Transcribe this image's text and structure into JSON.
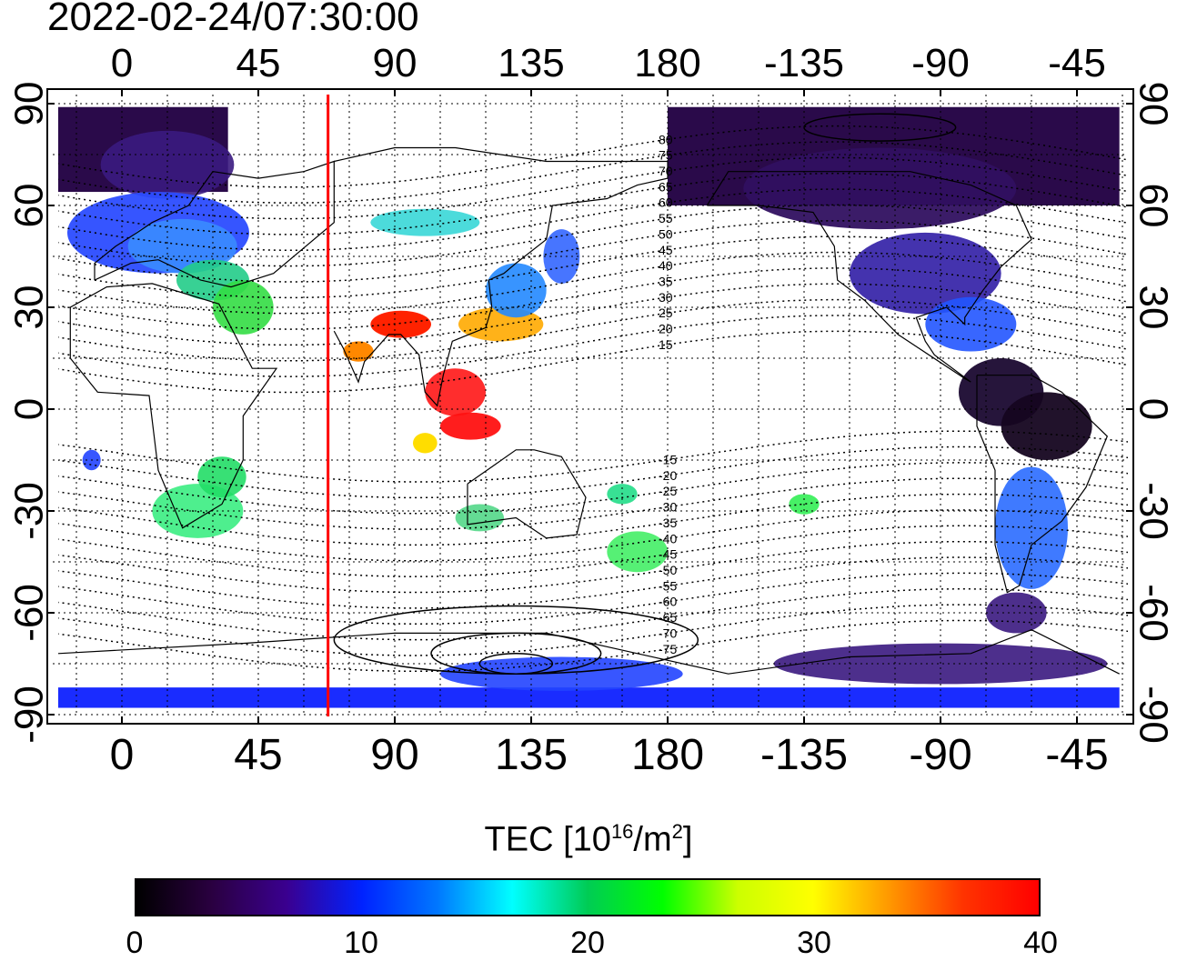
{
  "timestamp": "2022-02-24/07:30:00",
  "longitude_labels": [
    "0",
    "45",
    "90",
    "135",
    "180",
    "-135",
    "-90",
    "-45"
  ],
  "latitude_labels": [
    "90",
    "60",
    "30",
    "0",
    "-30",
    "-60",
    "-90"
  ],
  "longitude_values": [
    0,
    45,
    90,
    135,
    180,
    225,
    270,
    315
  ],
  "latitude_values": [
    90,
    60,
    30,
    0,
    -30,
    -60,
    -90
  ],
  "contour_labels": [
    "80",
    "75",
    "70",
    "65",
    "60",
    "55",
    "50",
    "45",
    "40",
    "35",
    "30",
    "25",
    "20",
    "15",
    "-15",
    "-20",
    "-25",
    "-30",
    "-35",
    "-40",
    "-45",
    "-50",
    "-55",
    "-60",
    "-65",
    "-70",
    "-75"
  ],
  "contour_values": [
    80,
    75,
    70,
    65,
    60,
    55,
    50,
    45,
    40,
    35,
    30,
    25,
    20,
    15,
    -15,
    -20,
    -25,
    -30,
    -35,
    -40,
    -45,
    -50,
    -55,
    -60,
    -65,
    -70,
    -75
  ],
  "colorbar": {
    "title_main": "TEC  [10",
    "title_exp1": "16",
    "title_mid": "/m",
    "title_exp2": "2",
    "title_end": "]",
    "min": 0,
    "max": 40,
    "tick_labels": [
      "0",
      "10",
      "20",
      "30",
      "40"
    ],
    "tick_values": [
      0,
      10,
      20,
      30,
      40
    ],
    "gradient_colors": [
      "#000000",
      "#2a0040",
      "#3a0090",
      "#0022ff",
      "#0077ff",
      "#00ffff",
      "#00cc55",
      "#00ff00",
      "#ccff00",
      "#ffff00",
      "#ff9900",
      "#ff3300",
      "#ff0000"
    ]
  },
  "marker_longitude": 68,
  "marker_color": "#ff0000"
}
